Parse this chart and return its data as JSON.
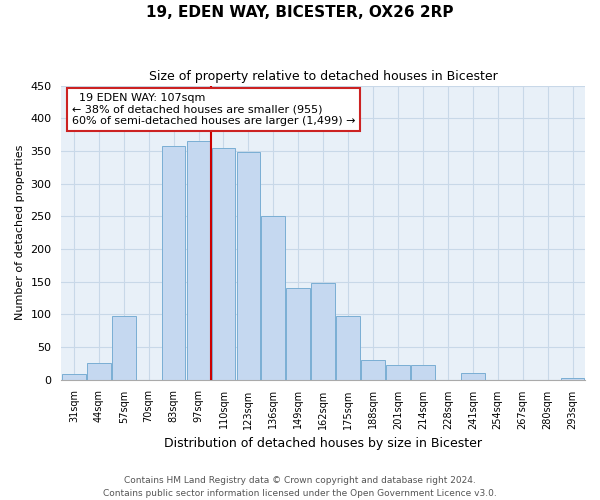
{
  "title": "19, EDEN WAY, BICESTER, OX26 2RP",
  "subtitle": "Size of property relative to detached houses in Bicester",
  "xlabel": "Distribution of detached houses by size in Bicester",
  "ylabel": "Number of detached properties",
  "bar_labels": [
    "31sqm",
    "44sqm",
    "57sqm",
    "70sqm",
    "83sqm",
    "97sqm",
    "110sqm",
    "123sqm",
    "136sqm",
    "149sqm",
    "162sqm",
    "175sqm",
    "188sqm",
    "201sqm",
    "214sqm",
    "228sqm",
    "241sqm",
    "254sqm",
    "267sqm",
    "280sqm",
    "293sqm"
  ],
  "bar_values": [
    8,
    25,
    98,
    0,
    358,
    365,
    355,
    348,
    250,
    140,
    148,
    97,
    30,
    22,
    22,
    0,
    10,
    0,
    0,
    0,
    3
  ],
  "bar_color": "#c5d8f0",
  "bar_edge_color": "#7aaed4",
  "ylim": [
    0,
    450
  ],
  "yticks": [
    0,
    50,
    100,
    150,
    200,
    250,
    300,
    350,
    400,
    450
  ],
  "red_line_index": 6,
  "annotation_title": "19 EDEN WAY: 107sqm",
  "annotation_line1": "← 38% of detached houses are smaller (955)",
  "annotation_line2": "60% of semi-detached houses are larger (1,499) →",
  "footer_line1": "Contains HM Land Registry data © Crown copyright and database right 2024.",
  "footer_line2": "Contains public sector information licensed under the Open Government Licence v3.0.",
  "background_color": "#ffffff",
  "plot_bg_color": "#e8f0f8",
  "grid_color": "#c8d8e8"
}
